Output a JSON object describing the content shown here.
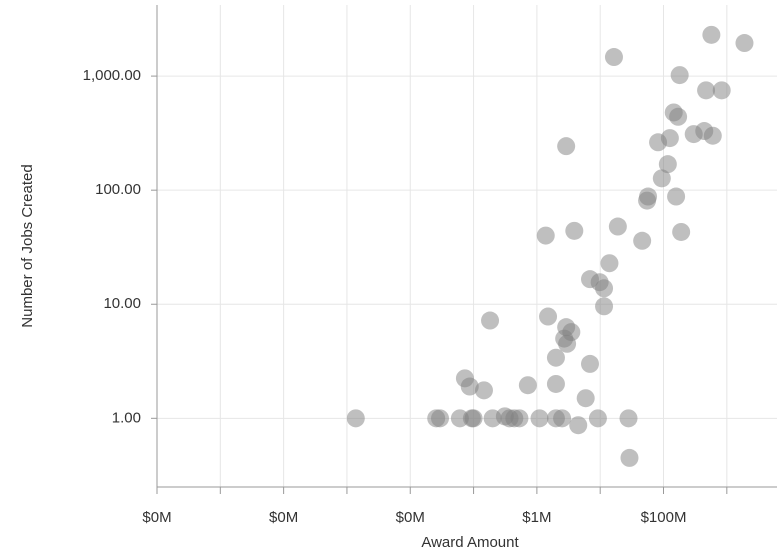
{
  "chart_data": {
    "type": "scatter",
    "xlabel": "Award Amount",
    "ylabel": "Number of Jobs Created",
    "xscale": "log",
    "yscale": "log",
    "grid": true,
    "color": "#808080",
    "xlim": [
      1,
      6200000000
    ],
    "ylim": [
      0.25,
      4200
    ],
    "xticks": [
      {
        "value": 1,
        "label": "$0M"
      },
      {
        "value": 100,
        "label": "$0M"
      },
      {
        "value": 10000,
        "label": "$0M"
      },
      {
        "value": 1000000,
        "label": "$1M"
      },
      {
        "value": 100000000,
        "label": "$100M"
      }
    ],
    "x_minor_ticks": [
      10,
      1000,
      100000,
      10000000,
      1000000000
    ],
    "yticks": [
      {
        "value": 1,
        "label": "1.00"
      },
      {
        "value": 10,
        "label": "10.00"
      },
      {
        "value": 100,
        "label": "100.00"
      },
      {
        "value": 1000,
        "label": "1,000.00"
      }
    ],
    "x": [
      1380,
      25700,
      29500,
      60800,
      73000,
      87000,
      94000,
      100000,
      146000,
      182000,
      200000,
      312000,
      370000,
      440000,
      530000,
      720000,
      1100000,
      1380000,
      1500000,
      2000000,
      2000000,
      2000000,
      2500000,
      2700000,
      2900000,
      2900000,
      3000000,
      3500000,
      3900000,
      4500000,
      5900000,
      6900000,
      6900000,
      9200000,
      9800000,
      11500000,
      11500000,
      14000000,
      16500000,
      19000000,
      28000000,
      29000000,
      46000000,
      55000000,
      57000000,
      82000000,
      94000000,
      117000000,
      126000000,
      145000000,
      158000000,
      170000000,
      180000000,
      190000000,
      300000000,
      440000000,
      470000000,
      570000000,
      600000000,
      830000000,
      1900000000
    ],
    "y": [
      1,
      1,
      1,
      1,
      2.24,
      1.9,
      1,
      1,
      1.76,
      7.2,
      1,
      1.04,
      1,
      1,
      1,
      1.95,
      1,
      40,
      7.8,
      3.4,
      2,
      1,
      1,
      5,
      243,
      6.3,
      4.5,
      5.7,
      44,
      0.87,
      1.5,
      16.6,
      3,
      1,
      15.6,
      13.8,
      9.6,
      22.9,
      1470,
      48,
      1,
      0.45,
      36,
      81,
      88,
      263,
      127,
      169,
      286,
      480,
      88,
      440,
      1020,
      43,
      310,
      330,
      750,
      2300,
      300,
      750,
      1950
    ]
  }
}
